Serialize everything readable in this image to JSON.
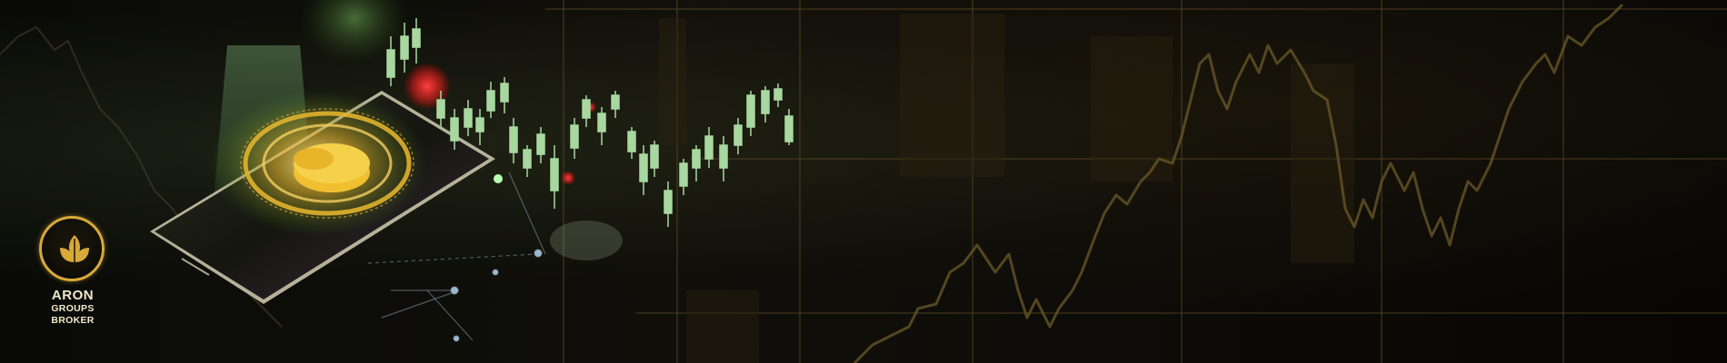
{
  "brand": {
    "line1": "ARON",
    "line2": "GROUPS",
    "line3": "BROKER",
    "logo_color": "#d9a93a",
    "text_color": "#f1e7c9"
  },
  "scene": {
    "icons": [
      "smartphone-icon",
      "coin-stack-icon",
      "candlestick-chart-icon",
      "price-line-chart-icon"
    ],
    "accent_green": "#a8f07a",
    "accent_gold": "#e0b22c",
    "accent_red": "#ff2a2a"
  }
}
